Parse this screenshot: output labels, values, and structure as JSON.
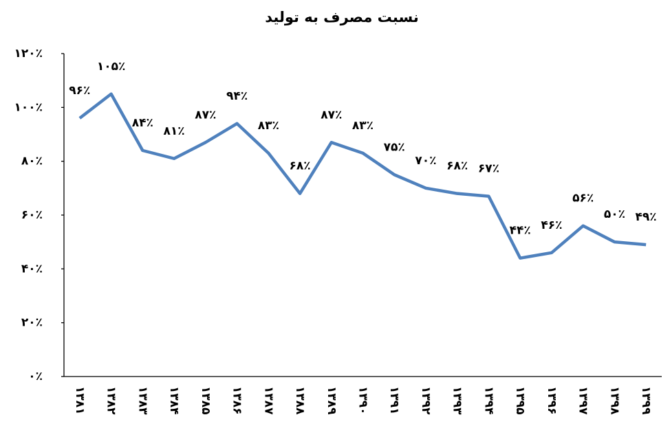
{
  "chart_data": {
    "type": "line",
    "title": "نسبت مصرف به تولید",
    "categories": [
      "۱۳۸۱",
      "۱۳۸۲",
      "۱۳۸۳",
      "۱۳۸۴",
      "۱۳۸۵",
      "۱۳۸۶",
      "۱۳۸۷",
      "۱۳۸۸",
      "۱۳۸۹",
      "۱۳۹۰",
      "۱۳۹۱",
      "۱۳۹۲",
      "۱۳۹۳",
      "۱۳۹۴",
      "۱۳۹۵",
      "۱۳۹۶",
      "۱۳۹۷",
      "۱۳۹۸",
      "۱۳۹۹"
    ],
    "series": [
      {
        "color": "#4f81bd",
        "values": [
          96,
          105,
          84,
          81,
          87,
          94,
          83,
          68,
          87,
          83,
          75,
          70,
          68,
          67,
          44,
          46,
          56,
          50,
          49
        ],
        "value_labels": [
          "۹۶٪",
          "۱۰۵٪",
          "۸۴٪",
          "۸۱٪",
          "۸۷٪",
          "۹۴٪",
          "۸۳٪",
          "۶۸٪",
          "۸۷٪",
          "۸۳٪",
          "۷۵٪",
          "۷۰٪",
          "۶۸٪",
          "۶۷٪",
          "۴۴٪",
          "۴۶٪",
          "۵۶٪",
          "۵۰٪",
          "۴۹٪"
        ]
      }
    ],
    "ylim": [
      0,
      120
    ],
    "yticks": [
      {
        "value": 0,
        "label": "۰٪"
      },
      {
        "value": 20,
        "label": "۲۰٪"
      },
      {
        "value": 40,
        "label": "۴۰٪"
      },
      {
        "value": 60,
        "label": "۶۰٪"
      },
      {
        "value": 80,
        "label": "۸۰٪"
      },
      {
        "value": 100,
        "label": "۱۰۰٪"
      },
      {
        "value": 120,
        "label": "۱۲۰٪"
      }
    ]
  }
}
